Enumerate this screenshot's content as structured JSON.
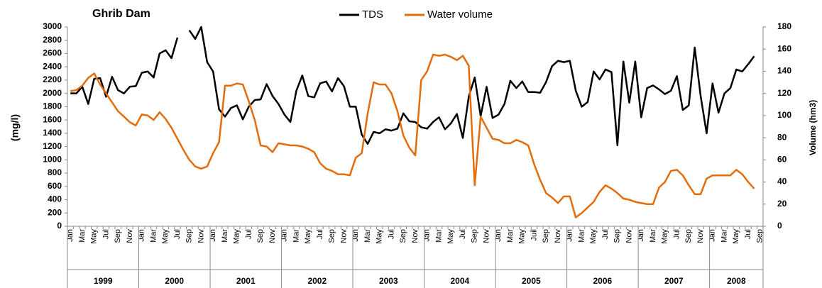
{
  "chart_data": {
    "type": "line",
    "title": "Ghrib Dam",
    "ylabel": "(mg/l)",
    "y2label": "Volume (hm3)",
    "categories": [
      "Jan",
      null,
      "Mar",
      null,
      "May",
      null,
      "Jul",
      null,
      "Sep",
      null,
      "Nov",
      null,
      "Jan",
      null,
      "Mar",
      null,
      "May",
      null,
      "Jul",
      null,
      "Sep",
      null,
      "Nov",
      null,
      "Jan",
      null,
      "Mar",
      null,
      "May",
      null,
      "Jul",
      null,
      "Sep",
      null,
      "Nov",
      null,
      "Jan",
      null,
      "Mar",
      null,
      "May",
      null,
      "Jul",
      null,
      "Sep",
      null,
      "Nov",
      null,
      "Jan",
      null,
      "Mar",
      null,
      "May",
      null,
      "Jul",
      null,
      "Sep",
      null,
      "Nov",
      null,
      "Jan",
      null,
      "Mar",
      null,
      "May",
      null,
      "Jul",
      null,
      "Sep",
      null,
      "Nov",
      null,
      "Jan",
      null,
      "Mar",
      null,
      "May",
      null,
      "Juil",
      null,
      "Sep",
      null,
      "Nov",
      null,
      "Jan",
      null,
      "Mar",
      null,
      "May",
      null,
      "Jul",
      null,
      "Sep",
      null,
      "Nov",
      null,
      "Jan",
      null,
      "Mar",
      null,
      "May",
      null,
      "Jul",
      null,
      "Sep",
      null,
      "Nov",
      null,
      "Jan",
      null,
      "Mar",
      null,
      "May",
      null,
      "Jul",
      null,
      "Sep"
    ],
    "years": [
      "1999",
      "2000",
      "2001",
      "2002",
      "2003",
      "2004",
      "2005",
      "2006",
      "2007",
      "2008"
    ],
    "series": [
      {
        "name": "TDS",
        "color": "#000000",
        "values": [
          2000,
          2000,
          2100,
          1840,
          2220,
          2230,
          1950,
          2250,
          2050,
          2000,
          2100,
          2110,
          2310,
          2330,
          2240,
          2600,
          2650,
          2530,
          2840,
          null,
          2950,
          2820,
          3000,
          2470,
          2330,
          1760,
          1650,
          1780,
          1820,
          1610,
          1800,
          1900,
          1910,
          2140,
          1960,
          1840,
          1680,
          1570,
          2040,
          2270,
          1960,
          1940,
          2150,
          2180,
          2030,
          2230,
          2110,
          1800,
          1800,
          1380,
          1240,
          1420,
          1400,
          1460,
          1440,
          1470,
          1700,
          1580,
          1570,
          1490,
          1470,
          1570,
          1640,
          1460,
          1550,
          1690,
          1330,
          1950,
          2240,
          1660,
          2100,
          1630,
          1680,
          1840,
          2190,
          2080,
          2180,
          2020,
          2020,
          2010,
          2170,
          2410,
          2490,
          2470,
          2490,
          2040,
          1800,
          1870,
          2330,
          2210,
          2360,
          2320,
          1220,
          2480,
          1860,
          2480,
          1640,
          2080,
          2120,
          2060,
          1990,
          2040,
          2260,
          1750,
          1820,
          2690,
          1960,
          1400,
          2150,
          1710,
          2000,
          2080,
          2360,
          2330,
          2440,
          2560,
          null
        ]
      },
      {
        "name": "Water volume",
        "color": "#e46c0a",
        "axis": "y2",
        "values": [
          122,
          123,
          127,
          134,
          138,
          128,
          120,
          112,
          104,
          99,
          94,
          91,
          101,
          100,
          96,
          103,
          97,
          89,
          79,
          69,
          60,
          54,
          52,
          54,
          66,
          76,
          127,
          127,
          129,
          128,
          113,
          96,
          73,
          72,
          67,
          75,
          74,
          73,
          73,
          72,
          70,
          67,
          57,
          52,
          50,
          47,
          47,
          46,
          62,
          66,
          102,
          130,
          128,
          128,
          120,
          104,
          82,
          71,
          64,
          132,
          140,
          155,
          154,
          155,
          153,
          150,
          154,
          145,
          37,
          99,
          89,
          79,
          78,
          75,
          75,
          78,
          76,
          73,
          56,
          42,
          30,
          26,
          21,
          27,
          27,
          8,
          12,
          17,
          22,
          31,
          37,
          34,
          30,
          25,
          24,
          22,
          21,
          20,
          20,
          35,
          40,
          50,
          51,
          46,
          37,
          29,
          29,
          43,
          46,
          46,
          46,
          46,
          51,
          47,
          40,
          34,
          null
        ]
      }
    ],
    "ylim": [
      0,
      3000
    ],
    "yticks": [
      0,
      200,
      400,
      600,
      800,
      1000,
      1200,
      1400,
      1600,
      1800,
      2000,
      2200,
      2400,
      2600,
      2800,
      3000
    ],
    "y2lim": [
      0,
      180
    ],
    "y2ticks": [
      0,
      20,
      40,
      60,
      80,
      100,
      120,
      140,
      160,
      180
    ],
    "grid": false
  }
}
